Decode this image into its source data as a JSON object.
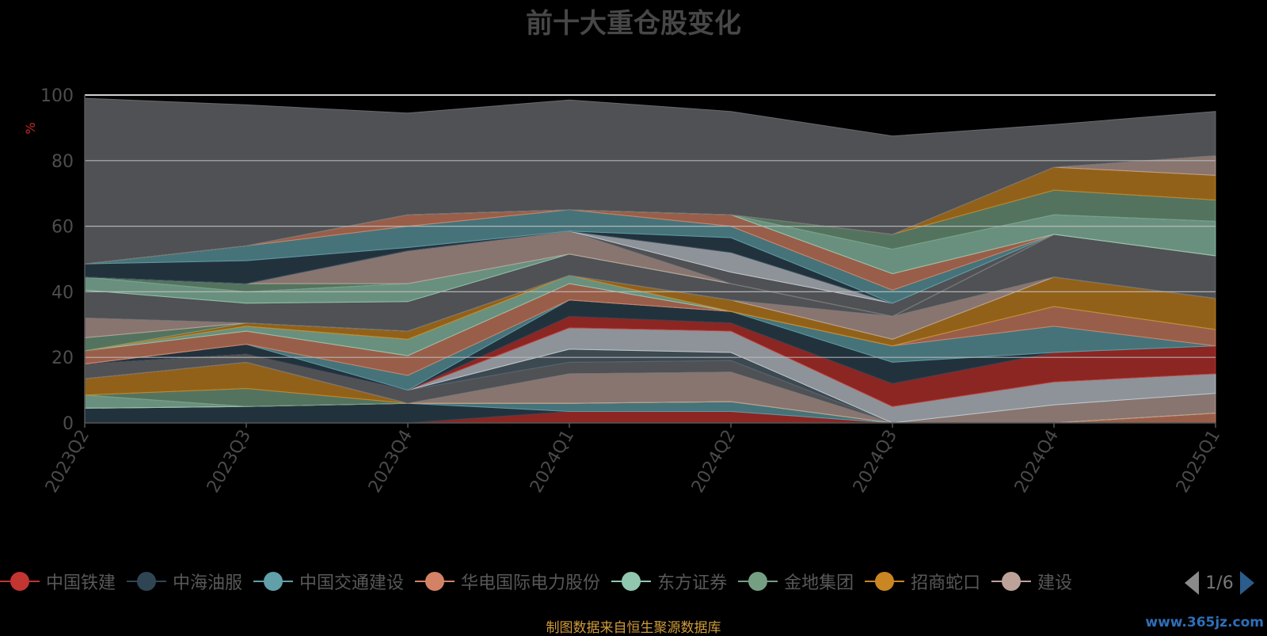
{
  "chart_data": {
    "type": "area",
    "title": "前十大重仓股变化",
    "ylabel": "%",
    "xlabel": "",
    "ylim": [
      0,
      100
    ],
    "yticks": [
      0,
      20,
      40,
      60,
      80,
      100
    ],
    "grid": true,
    "stacked": true,
    "categories": [
      "2023Q2",
      "2023Q3",
      "2023Q4",
      "2024Q1",
      "2024Q2",
      "2024Q3",
      "2024Q4",
      "2025Q1"
    ],
    "series": [
      {
        "name": "中国铁建",
        "color": "#c23531",
        "values": [
          0,
          0,
          0,
          3.5,
          3.5,
          0,
          0,
          0
        ]
      },
      {
        "name": "中海油服",
        "color": "#2f4554",
        "values": [
          4.5,
          5,
          6,
          0,
          0,
          0,
          0,
          0
        ]
      },
      {
        "name": "中国交通建设",
        "color": "#61a0a8",
        "values": [
          0,
          0,
          0,
          2.5,
          3,
          0,
          0,
          0
        ]
      },
      {
        "name": "华电国际电力股份",
        "color": "#d48265",
        "values": [
          0,
          0,
          0,
          0,
          0,
          0,
          0,
          3
        ]
      },
      {
        "name": "东方证券",
        "color": "#91c7ae",
        "values": [
          4,
          0,
          0,
          0,
          0,
          0,
          0,
          0
        ]
      },
      {
        "name": "金地集团",
        "color": "#749f83",
        "values": [
          0,
          5.5,
          0,
          0,
          0,
          0,
          0,
          0
        ]
      },
      {
        "name": "招商蛇口",
        "color": "#ca8622",
        "values": [
          5,
          8,
          0,
          0,
          0,
          0,
          0,
          0
        ]
      },
      {
        "name": "建设",
        "color": "#bda29a",
        "values": [
          0,
          0,
          0,
          9,
          9,
          0,
          5.5,
          6
        ]
      },
      {
        "name": "",
        "color": "#6e7074",
        "values": [
          4.5,
          2.5,
          4,
          3.5,
          3.5,
          0,
          0,
          0
        ]
      },
      {
        "name": "",
        "color": "#546570",
        "values": [
          0,
          0,
          0,
          4,
          2.5,
          0,
          0,
          0
        ]
      },
      {
        "name": "",
        "color": "#c4ccd3",
        "values": [
          0,
          0,
          0,
          6.5,
          6.5,
          5,
          7,
          6
        ]
      },
      {
        "name": "",
        "color": "#c23531",
        "values": [
          0,
          0,
          0,
          3.5,
          2.5,
          7,
          9,
          8.5
        ]
      },
      {
        "name": "",
        "color": "#2f4554",
        "values": [
          0,
          3,
          0,
          5,
          3.5,
          6.5,
          0,
          0
        ]
      },
      {
        "name": "",
        "color": "#61a0a8",
        "values": [
          0,
          0,
          4.5,
          0,
          0,
          5,
          8,
          0
        ]
      },
      {
        "name": "",
        "color": "#d48265",
        "values": [
          4,
          4,
          6,
          5,
          0,
          0,
          6,
          5
        ]
      },
      {
        "name": "",
        "color": "#91c7ae",
        "values": [
          0,
          1.5,
          5,
          2.5,
          0,
          0,
          0,
          0
        ]
      },
      {
        "name": "",
        "color": "#ca8622",
        "values": [
          0,
          1,
          2.5,
          0,
          3.5,
          2,
          9,
          9.5
        ]
      },
      {
        "name": "",
        "color": "#749f83",
        "values": [
          4,
          0,
          0,
          0,
          0,
          0,
          0,
          0
        ]
      },
      {
        "name": "",
        "color": "#bda29a",
        "values": [
          6,
          0,
          0,
          0,
          0,
          7,
          0,
          0
        ]
      },
      {
        "name": "",
        "color": "#6e7074",
        "values": [
          8.5,
          6,
          9,
          6.5,
          5,
          0,
          13,
          13
        ]
      },
      {
        "name": "",
        "color": "#91c7ae",
        "values": [
          4,
          3.5,
          5.5,
          0,
          0,
          0,
          0,
          0
        ]
      },
      {
        "name": "",
        "color": "#749f83",
        "values": [
          0,
          2.5,
          0,
          0,
          0,
          0,
          0,
          0
        ]
      },
      {
        "name": "",
        "color": "#bda29a",
        "values": [
          0,
          0,
          10,
          7,
          0,
          0,
          0,
          0
        ]
      },
      {
        "name": "",
        "color": "#6e7074",
        "values": [
          0,
          0,
          0,
          0,
          3.5,
          4,
          0,
          0
        ]
      },
      {
        "name": "",
        "color": "#c4ccd3",
        "values": [
          0,
          0,
          0,
          0,
          6,
          0,
          0,
          0
        ]
      },
      {
        "name": "",
        "color": "#2f4554",
        "values": [
          4,
          7,
          1,
          0,
          4.5,
          0,
          0,
          0
        ]
      },
      {
        "name": "",
        "color": "#61a0a8",
        "values": [
          0,
          4.5,
          6.5,
          6.5,
          3.5,
          4,
          0,
          0
        ]
      },
      {
        "name": "",
        "color": "#d48265",
        "values": [
          0,
          0,
          3.5,
          0,
          3.5,
          5,
          0,
          0
        ]
      },
      {
        "name": "",
        "color": "#91c7ae",
        "values": [
          0,
          0,
          0,
          0,
          0,
          7.5,
          6,
          10.5
        ]
      },
      {
        "name": "",
        "color": "#749f83",
        "values": [
          0,
          0,
          0,
          0,
          0,
          4.5,
          7.5,
          6.5
        ]
      },
      {
        "name": "",
        "color": "#ca8622",
        "values": [
          0,
          0,
          0,
          0,
          0,
          0,
          7,
          7.5
        ]
      },
      {
        "name": "",
        "color": "#bda29a",
        "values": [
          0,
          0,
          0,
          0,
          0,
          0,
          0,
          6
        ]
      },
      {
        "name": "",
        "color": "#6e7074",
        "values": [
          50.5,
          43,
          31,
          33.5,
          31.5,
          30,
          13,
          13.5
        ]
      }
    ]
  },
  "legend": {
    "items": [
      {
        "name": "中国铁建",
        "color": "#c23531"
      },
      {
        "name": "中海油服",
        "color": "#2f4554"
      },
      {
        "name": "中国交通建设",
        "color": "#61a0a8"
      },
      {
        "name": "华电国际电力股份",
        "color": "#d48265"
      },
      {
        "name": "东方证券",
        "color": "#91c7ae"
      },
      {
        "name": "金地集团",
        "color": "#749f83"
      },
      {
        "name": "招商蛇口",
        "color": "#ca8622"
      },
      {
        "name": "建设",
        "color": "#bda29a"
      }
    ],
    "page": "1/6"
  },
  "footer": {
    "source": "制图数据来自恒生聚源数据库",
    "watermark": "www.365jz.com"
  }
}
